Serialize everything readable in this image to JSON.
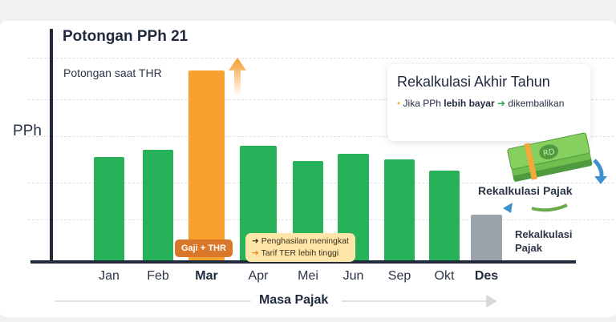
{
  "chart_data": {
    "type": "bar",
    "title": "Potongan PPh 21",
    "ylabel": "PPh",
    "xlabel": "Masa Pajak",
    "categories": [
      "Jan",
      "Feb",
      "Mar",
      "Apr",
      "Mei",
      "Jun",
      "Sep",
      "Okt",
      "Des"
    ],
    "values": [
      54,
      58,
      99,
      60,
      52,
      56,
      53,
      47,
      24
    ],
    "ylim": [
      0,
      100
    ],
    "bold_categories": [
      "Mar",
      "Des"
    ],
    "colors": {
      "normal": "#27b25a",
      "thr": "#f9a12e",
      "december": "#9aa2ab"
    },
    "grid": true
  },
  "annotations": {
    "thr_label": "Potongan saat THR",
    "gaji_badge": "Gaji + THR",
    "note_line1": "Penghasilan meningkat",
    "note_line2": "Tarif TER lebih tinggi",
    "box_title": "Rekalkulasi Akhir Tahun",
    "box_note_a": "Jika PPh",
    "box_note_b": "lebih bayar",
    "box_note_c": "dikembalikan",
    "recalc_1": "Rekalkulasi Pajak",
    "recalc_2a": "Rekalkulasi",
    "recalc_2b": "Pajak",
    "money_text": "RD"
  }
}
